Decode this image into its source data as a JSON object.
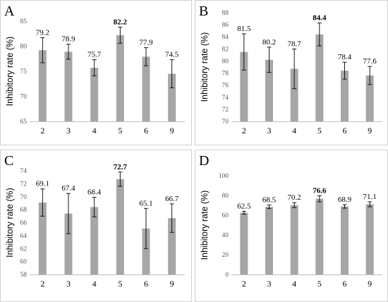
{
  "chart_data": [
    {
      "type": "bar",
      "panel_label": "A",
      "ylabel": "Inhibitory rate (%)",
      "categories": [
        "2",
        "3",
        "4",
        "5",
        "6",
        "9"
      ],
      "values": [
        79.2,
        78.9,
        75.7,
        82.2,
        77.9,
        74.5
      ],
      "errors": [
        2.5,
        1.5,
        1.6,
        1.6,
        1.8,
        2.8
      ],
      "value_labels": [
        "79.2",
        "78.9",
        "75.7",
        "82.2",
        "77.9",
        "74.5"
      ],
      "bold_index": 3,
      "ylim": [
        65,
        85
      ],
      "yticks": [
        "65",
        "70",
        "75",
        "80",
        "85"
      ],
      "bar_color": "#a6a6a6",
      "grid": false
    },
    {
      "type": "bar",
      "panel_label": "B",
      "ylabel": "Inhibitory rate (%)",
      "categories": [
        "2",
        "3",
        "4",
        "5",
        "6",
        "9"
      ],
      "values": [
        81.5,
        80.2,
        78.7,
        84.4,
        78.4,
        77.6
      ],
      "errors": [
        3.0,
        2.1,
        3.3,
        1.9,
        1.4,
        1.5
      ],
      "value_labels": [
        "81.5",
        "80.2",
        "78.7",
        "84.4",
        "78.4",
        "77.6"
      ],
      "bold_index": 3,
      "ylim": [
        70,
        88
      ],
      "yticks": [
        "70",
        "72",
        "74",
        "76",
        "78",
        "80",
        "82",
        "84",
        "86",
        "88"
      ],
      "bar_color": "#a6a6a6",
      "grid": false
    },
    {
      "type": "bar",
      "panel_label": "C",
      "ylabel": "Inhibitory rate (%)",
      "categories": [
        "2",
        "3",
        "4",
        "5",
        "6",
        "9"
      ],
      "values": [
        69.1,
        67.4,
        68.4,
        72.7,
        65.1,
        66.7
      ],
      "errors": [
        2.1,
        3.1,
        1.5,
        1.1,
        3.1,
        2.2
      ],
      "value_labels": [
        "69.1",
        "67.4",
        "68.4",
        "72.7",
        "65.1",
        "66.7"
      ],
      "bold_index": 3,
      "ylim": [
        58,
        74
      ],
      "yticks": [
        "58",
        "60",
        "62",
        "64",
        "66",
        "68",
        "70",
        "72",
        "74"
      ],
      "bar_color": "#a6a6a6",
      "grid": false
    },
    {
      "type": "bar",
      "panel_label": "D",
      "ylabel": "Inhibitory rate (%)",
      "categories": [
        "2",
        "3",
        "4",
        "5",
        "6",
        "9"
      ],
      "values": [
        62.5,
        68.5,
        70.2,
        76.6,
        68.9,
        71.1
      ],
      "errors": [
        1.5,
        1.8,
        2.5,
        3.0,
        1.8,
        2.5
      ],
      "value_labels": [
        "62.5",
        "68.5",
        "70.2",
        "76.6",
        "68.9",
        "71.1"
      ],
      "bold_index": 3,
      "ylim": [
        0,
        100
      ],
      "yticks": [
        "0",
        "20",
        "40",
        "60",
        "80",
        "100"
      ],
      "bar_color": "#a6a6a6",
      "grid": false
    }
  ]
}
